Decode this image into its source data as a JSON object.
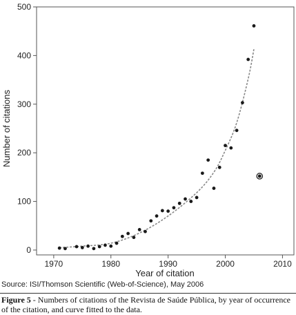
{
  "chart_data": {
    "type": "scatter",
    "title": "",
    "xlabel": "Year of citation",
    "ylabel": "Number of citations",
    "xlim": [
      1967,
      2012
    ],
    "ylim": [
      -10,
      500
    ],
    "x_ticks": [
      1970,
      1980,
      1990,
      2000,
      2010
    ],
    "y_ticks": [
      0,
      100,
      200,
      300,
      400,
      500
    ],
    "grid": false,
    "legend": "none",
    "series": [
      {
        "kind": "points",
        "x": [
          1971,
          1972,
          1974,
          1975,
          1976,
          1977,
          1978,
          1979,
          1980,
          1981,
          1982,
          1983,
          1984,
          1985,
          1986,
          1987,
          1988,
          1989,
          1990,
          1991,
          1992,
          1993,
          1994,
          1995,
          1996,
          1997,
          1998,
          1999,
          2000,
          2001,
          2002,
          2003,
          2004,
          2005
        ],
        "y": [
          4,
          3,
          7,
          5,
          8,
          3,
          7,
          10,
          8,
          14,
          28,
          34,
          26,
          42,
          38,
          60,
          70,
          81,
          80,
          87,
          96,
          105,
          100,
          108,
          158,
          185,
          127,
          170,
          215,
          210,
          246,
          303,
          392,
          461
        ]
      },
      {
        "kind": "highlight-point",
        "x": [
          2006
        ],
        "y": [
          152
        ]
      },
      {
        "kind": "fitted-curve",
        "style": "dashed",
        "x": [
          1971,
          1975,
          1980,
          1985,
          1990,
          1995,
          1998,
          2000,
          2002,
          2004,
          2005
        ],
        "y": [
          5,
          8,
          14,
          35,
          70,
          118,
          160,
          205,
          262,
          352,
          413
        ]
      }
    ],
    "colors": {
      "points": "#1a1a1a",
      "curve": "#888888",
      "axes": "#444444"
    }
  },
  "source": "Source: ISI/Thomson Scientific (Web-of-Science), May 2006",
  "caption": {
    "label": "Figure 5",
    "text": " - Numbers of citations of the Revista de Saúde Pública, by year of occurrence of the citation, and curve fitted to the data."
  }
}
